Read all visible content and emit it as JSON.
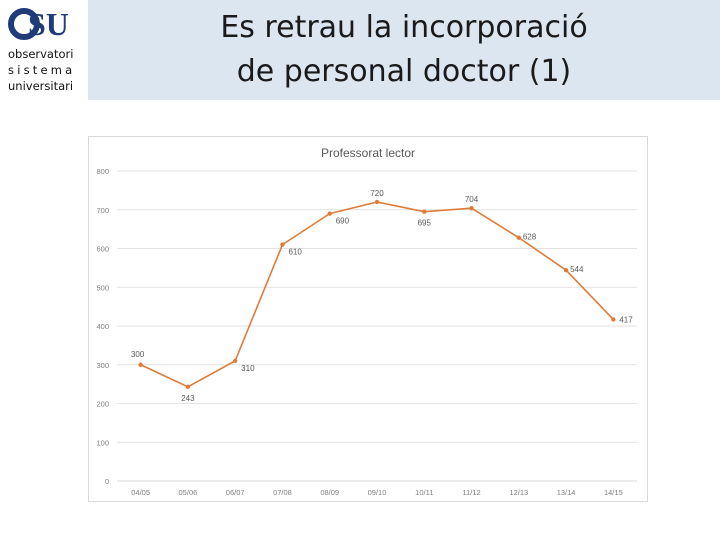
{
  "slide": {
    "title_line1": "Es retrau la incorporació",
    "title_line2": "de personal doctor (1)"
  },
  "logo": {
    "mark": "OSU",
    "line1": "observatori",
    "line2": "sistema",
    "line3": "universitari",
    "color": "#1f3c78"
  },
  "colors": {
    "series": "#e07b39",
    "grid": "#d9d9d9",
    "title_band": "#dce6f1"
  },
  "chart_data": {
    "type": "line",
    "title": "Professorat lector",
    "xlabel": "",
    "ylabel": "",
    "ylim": [
      0,
      800
    ],
    "yticks": [
      0,
      100,
      200,
      300,
      400,
      500,
      600,
      700,
      800
    ],
    "grid": true,
    "legend": "none",
    "categories": [
      "04/05",
      "05/06",
      "06/07",
      "07/08",
      "08/09",
      "09/10",
      "10/11",
      "11/12",
      "12/13",
      "13/14",
      "14/15"
    ],
    "series": [
      {
        "values": [
          300,
          243,
          310,
          610,
          690,
          720,
          695,
          704,
          628,
          544,
          417
        ]
      }
    ]
  }
}
